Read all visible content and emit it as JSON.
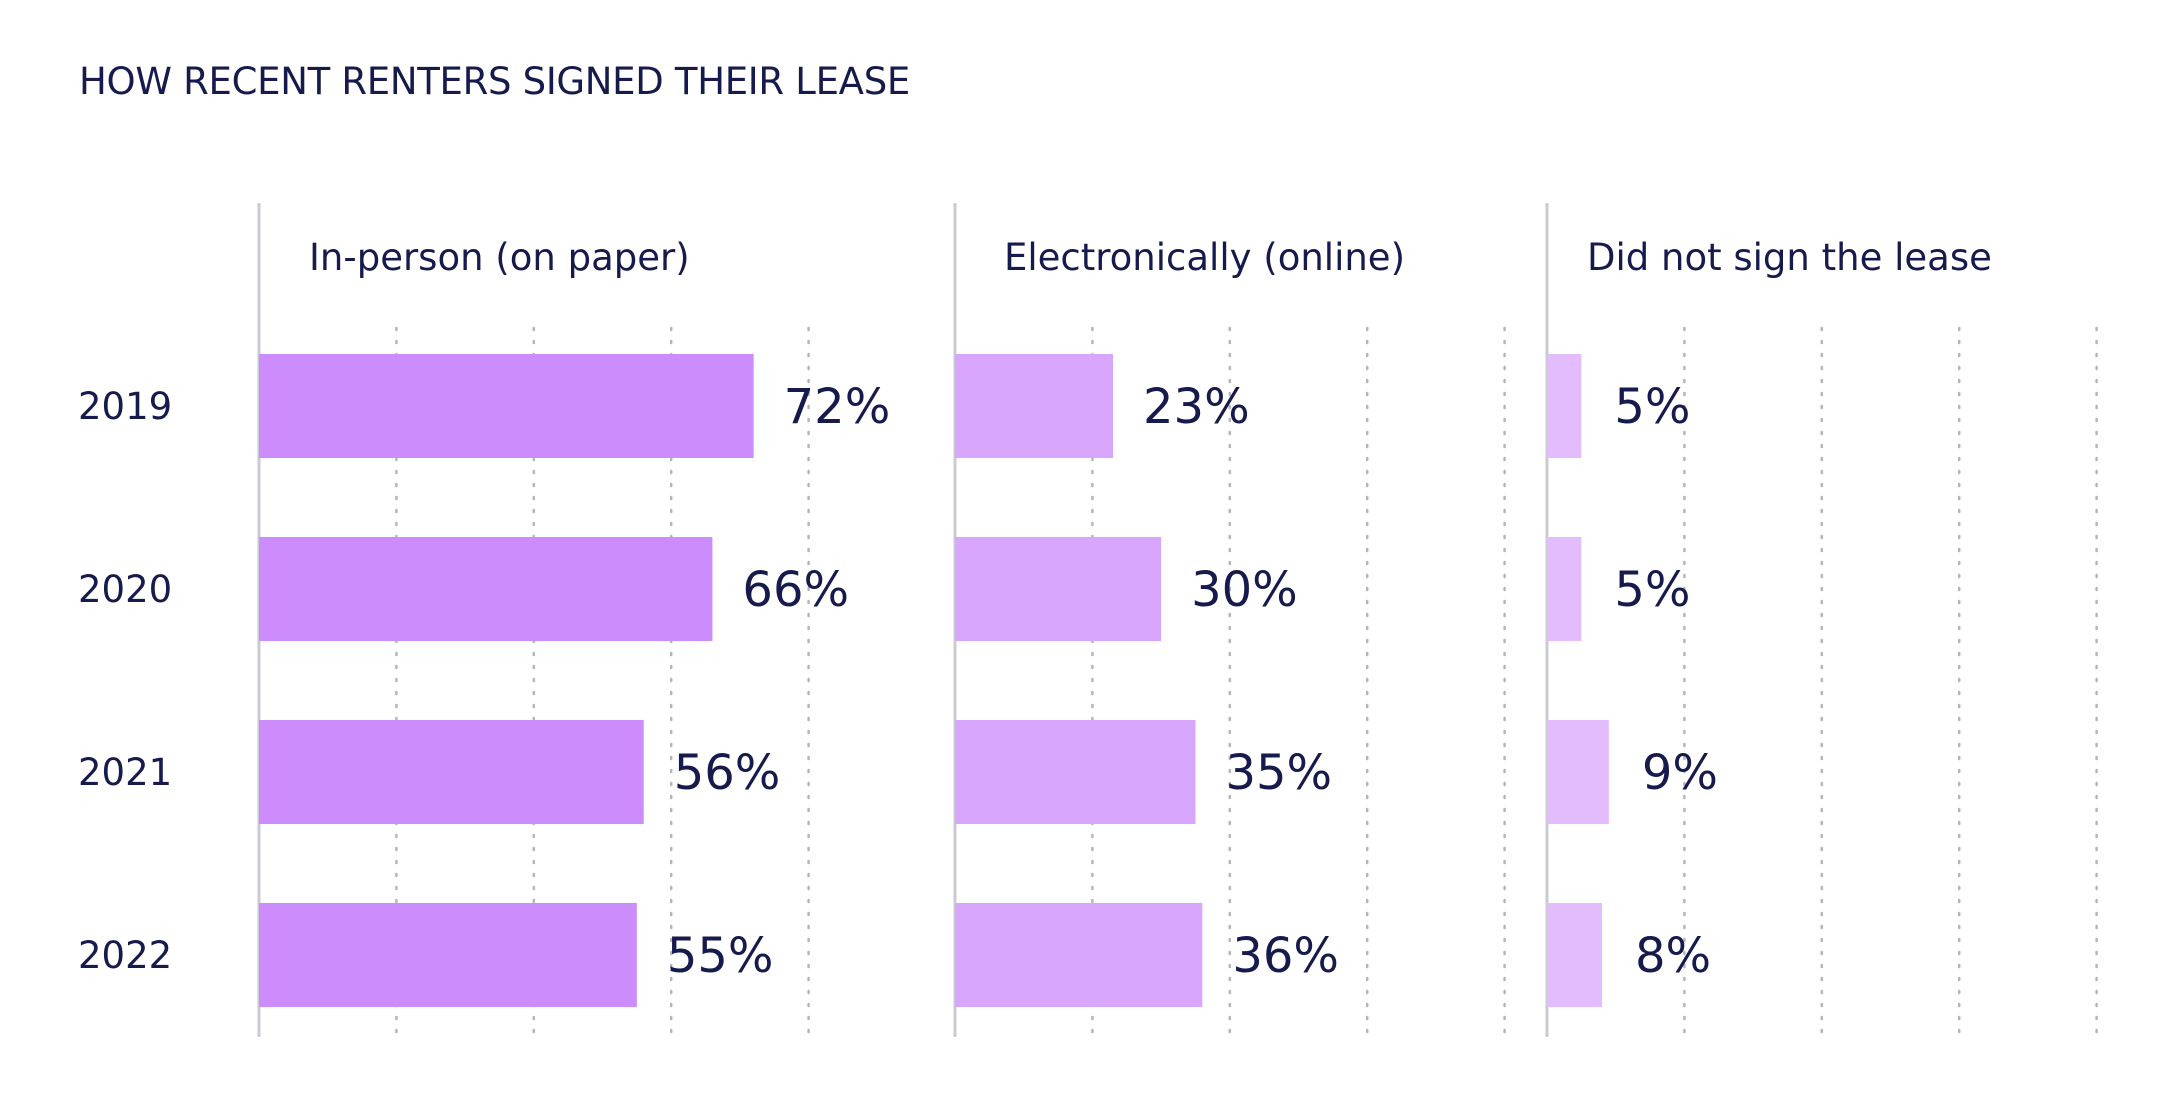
{
  "chart_data": {
    "type": "bar",
    "title": "HOW RECENT RENTERS SIGNED THEIR LEASE",
    "categories": [
      "2019",
      "2020",
      "2021",
      "2022"
    ],
    "series": [
      {
        "name": "In-person (on paper)",
        "values": [
          72,
          66,
          56,
          55
        ],
        "labels": [
          "72%",
          "66%",
          "56%",
          "55%"
        ],
        "color": "#cc8cfb"
      },
      {
        "name": "Electronically (online)",
        "values": [
          23,
          30,
          35,
          36
        ],
        "labels": [
          "23%",
          "30%",
          "35%",
          "36%"
        ],
        "color": "#d8a6fd"
      },
      {
        "name": "Did not sign the lease",
        "values": [
          5,
          5,
          9,
          8
        ],
        "labels": [
          "5%",
          "5%",
          "9%",
          "8%"
        ],
        "color": "#e2bcfd"
      }
    ],
    "xlim": [
      0,
      80
    ],
    "orientation": "horizontal",
    "grid": true
  },
  "colors": {
    "text": "#161a4c",
    "axis": "#c9cad3",
    "grid": "#b4b5bd"
  }
}
